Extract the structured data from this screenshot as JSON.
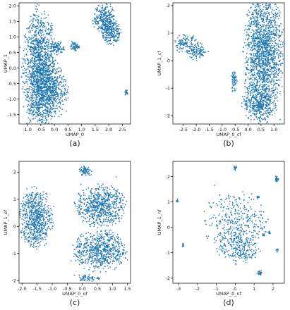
{
  "chart_data": [
    {
      "id": "a",
      "type": "scatter",
      "caption": "(a)",
      "xlabel": "UMAP_0",
      "ylabel": "UMAP_1",
      "xlim": [
        -1.3,
        2.8
      ],
      "ylim": [
        -1.8,
        2.1
      ],
      "xticks": [
        -1.0,
        -0.5,
        0.0,
        0.5,
        1.0,
        1.5,
        2.0,
        2.5
      ],
      "xtick_labels": [
        "-1.0",
        "-0.5",
        "0.0",
        "0.5",
        "1.0",
        "1.5",
        "2.0",
        "2.5"
      ],
      "yticks": [
        -1.5,
        -1.0,
        -0.5,
        0.0,
        0.5,
        1.0,
        1.5,
        2.0
      ],
      "ytick_labels": [
        "-1.5",
        "-1.0",
        "-0.5",
        "0.0",
        "0.5",
        "1.0",
        "1.5",
        "2.0"
      ],
      "color": "#1f77b4",
      "clusters": [
        {
          "cx": -0.55,
          "cy": -0.1,
          "rx": 0.45,
          "ry": 1.45,
          "n": 1400
        },
        {
          "cx": -0.2,
          "cy": -0.7,
          "rx": 0.5,
          "ry": 0.7,
          "n": 600
        },
        {
          "cx": 0.1,
          "cy": 0.65,
          "rx": 0.2,
          "ry": 0.15,
          "n": 90
        },
        {
          "cx": 0.75,
          "cy": 0.7,
          "rx": 0.12,
          "ry": 0.1,
          "n": 60
        },
        {
          "cx": 1.85,
          "cy": 1.55,
          "rx": 0.3,
          "ry": 0.4,
          "n": 320
        },
        {
          "cx": 2.1,
          "cy": 1.15,
          "rx": 0.25,
          "ry": 0.3,
          "n": 180
        },
        {
          "cx": 2.65,
          "cy": -0.8,
          "rx": 0.05,
          "ry": 0.07,
          "n": 20
        }
      ]
    },
    {
      "id": "b",
      "type": "scatter",
      "caption": "(b)",
      "xlabel": "UMAP_0_cf",
      "ylabel": "UMAP_1_cf",
      "xlim": [
        -2.9,
        1.4
      ],
      "ylim": [
        -2.3,
        2.1
      ],
      "xticks": [
        -2.5,
        -2.0,
        -1.5,
        -1.0,
        -0.5,
        0.0,
        0.5,
        1.0
      ],
      "xtick_labels": [
        "-2.5",
        "-2.0",
        "-1.5",
        "-1.0",
        "-0.5",
        "0.0",
        "0.5",
        "1.0"
      ],
      "yticks": [
        -2,
        -1,
        0,
        1,
        2
      ],
      "ytick_labels": [
        "-2",
        "-1",
        "0",
        "1",
        "2"
      ],
      "color": "#1f77b4",
      "clusters": [
        {
          "cx": 0.6,
          "cy": 0.2,
          "rx": 0.55,
          "ry": 1.7,
          "n": 1700
        },
        {
          "cx": 0.4,
          "cy": -1.5,
          "rx": 0.45,
          "ry": 0.5,
          "n": 300
        },
        {
          "cx": -2.4,
          "cy": 0.6,
          "rx": 0.35,
          "ry": 0.25,
          "n": 120
        },
        {
          "cx": -1.95,
          "cy": 0.3,
          "rx": 0.3,
          "ry": 0.2,
          "n": 100
        },
        {
          "cx": -0.55,
          "cy": -0.75,
          "rx": 0.08,
          "ry": 0.3,
          "n": 60
        }
      ]
    },
    {
      "id": "c",
      "type": "scatter",
      "caption": "(c)",
      "xlabel": "UMAP_0_of",
      "ylabel": "UMAP_1_of",
      "xlim": [
        -2.1,
        1.6
      ],
      "ylim": [
        -2.1,
        2.4
      ],
      "xticks": [
        -2.0,
        -1.5,
        -1.0,
        -0.5,
        0.0,
        0.5,
        1.0,
        1.5
      ],
      "xtick_labels": [
        "-2.0",
        "-1.5",
        "-1.0",
        "-0.5",
        "0.0",
        "0.5",
        "1.0",
        "1.5"
      ],
      "yticks": [
        -2,
        -1,
        0,
        1,
        2
      ],
      "ytick_labels": [
        "-2",
        "-1",
        "0",
        "1",
        "2"
      ],
      "color": "#1f77b4",
      "clusters": [
        {
          "cx": -1.55,
          "cy": 0.3,
          "rx": 0.4,
          "ry": 0.8,
          "n": 700
        },
        {
          "cx": 0.6,
          "cy": 0.75,
          "rx": 0.6,
          "ry": 0.55,
          "n": 650
        },
        {
          "cx": 0.6,
          "cy": -0.9,
          "rx": 0.65,
          "ry": 0.55,
          "n": 650
        },
        {
          "cx": 0.1,
          "cy": 2.05,
          "rx": 0.15,
          "ry": 0.15,
          "n": 80
        },
        {
          "cx": 0.2,
          "cy": -1.9,
          "rx": 0.3,
          "ry": 0.1,
          "n": 60
        }
      ]
    },
    {
      "id": "d",
      "type": "scatter",
      "caption": "(d)",
      "xlabel": "UMAP_0_nf",
      "ylabel": "UMAP_1_nf",
      "xlim": [
        -3.3,
        2.6
      ],
      "ylim": [
        -2.2,
        2.6
      ],
      "xticks": [
        -3,
        -2,
        -1,
        0,
        1,
        2
      ],
      "xtick_labels": [
        "-3",
        "-2",
        "-1",
        "0",
        "1",
        "2"
      ],
      "yticks": [
        -2,
        -1,
        0,
        1,
        2
      ],
      "ytick_labels": [
        "-2",
        "-1",
        "0",
        "1",
        "2"
      ],
      "color": "#1f77b4",
      "clusters": [
        {
          "cx": 0.0,
          "cy": 0.2,
          "rx": 1.2,
          "ry": 0.9,
          "n": 350
        },
        {
          "cx": 0.2,
          "cy": -0.8,
          "rx": 0.8,
          "ry": 0.5,
          "n": 220
        },
        {
          "cx": 0.0,
          "cy": 2.35,
          "rx": 0.07,
          "ry": 0.07,
          "n": 20
        },
        {
          "cx": 2.2,
          "cy": 1.9,
          "rx": 0.08,
          "ry": 0.1,
          "n": 25
        },
        {
          "cx": -3.05,
          "cy": 1.05,
          "rx": 0.05,
          "ry": 0.05,
          "n": 10
        },
        {
          "cx": -2.75,
          "cy": -0.7,
          "rx": 0.05,
          "ry": 0.05,
          "n": 10
        },
        {
          "cx": 1.3,
          "cy": -1.8,
          "rx": 0.1,
          "ry": 0.08,
          "n": 25
        },
        {
          "cx": 1.5,
          "cy": -0.3,
          "rx": 0.05,
          "ry": 0.05,
          "n": 12
        },
        {
          "cx": 1.2,
          "cy": 1.2,
          "rx": 0.05,
          "ry": 0.05,
          "n": 10
        },
        {
          "cx": 2.2,
          "cy": -0.9,
          "rx": 0.05,
          "ry": 0.05,
          "n": 8
        },
        {
          "cx": 1.8,
          "cy": -0.2,
          "rx": 0.05,
          "ry": 0.05,
          "n": 8
        }
      ]
    }
  ]
}
